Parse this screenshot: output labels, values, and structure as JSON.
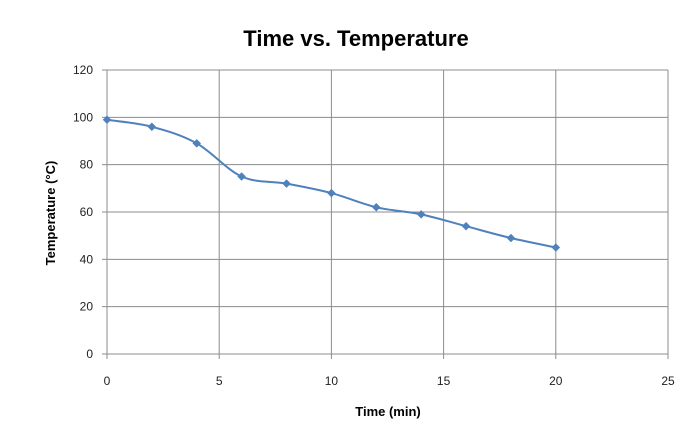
{
  "chart_data": {
    "type": "scatter",
    "title": "Time vs. Temperature",
    "xlabel": "Time (min)",
    "ylabel": "Temperature (°C)",
    "xlim": [
      0,
      25
    ],
    "ylim": [
      0,
      120
    ],
    "x_ticks": [
      0,
      5,
      10,
      15,
      20,
      25
    ],
    "y_ticks": [
      0,
      20,
      40,
      60,
      80,
      100,
      120
    ],
    "grid": true,
    "series": [
      {
        "x": [
          0,
          2,
          4,
          6,
          8,
          10,
          12,
          14,
          16,
          18,
          20
        ],
        "y": [
          99,
          96,
          89,
          75,
          72,
          68,
          62,
          59,
          54,
          49,
          45
        ],
        "color": "#4f81bd",
        "marker": "diamond",
        "line": "smooth"
      }
    ]
  }
}
